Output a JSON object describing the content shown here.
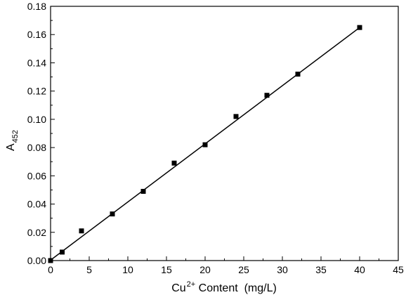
{
  "chart_data": {
    "type": "scatter",
    "xlabel": {
      "base": "Cu",
      "superscript": "2+",
      "rest": " Content  (mg/L)"
    },
    "ylabel": {
      "base": "A",
      "subscript": "452"
    },
    "xlim": [
      0,
      45
    ],
    "ylim": [
      0,
      0.18
    ],
    "xticks": [
      "0",
      "5",
      "10",
      "15",
      "20",
      "25",
      "30",
      "35",
      "40",
      "45"
    ],
    "yticks": [
      "0.00",
      "0.02",
      "0.04",
      "0.06",
      "0.08",
      "0.10",
      "0.12",
      "0.14",
      "0.16",
      "0.18"
    ],
    "grid": false,
    "legend": "none",
    "marker_color": "#000000",
    "series": [
      {
        "x": [
          0,
          1.5,
          4,
          8,
          12,
          16,
          20,
          24,
          28,
          32,
          40
        ],
        "y": [
          0.0,
          0.006,
          0.021,
          0.033,
          0.049,
          0.069,
          0.082,
          0.102,
          0.117,
          0.132,
          0.165
        ]
      }
    ],
    "fit_line": {
      "x": [
        0,
        40
      ],
      "y": [
        0.0003,
        0.165
      ]
    }
  }
}
